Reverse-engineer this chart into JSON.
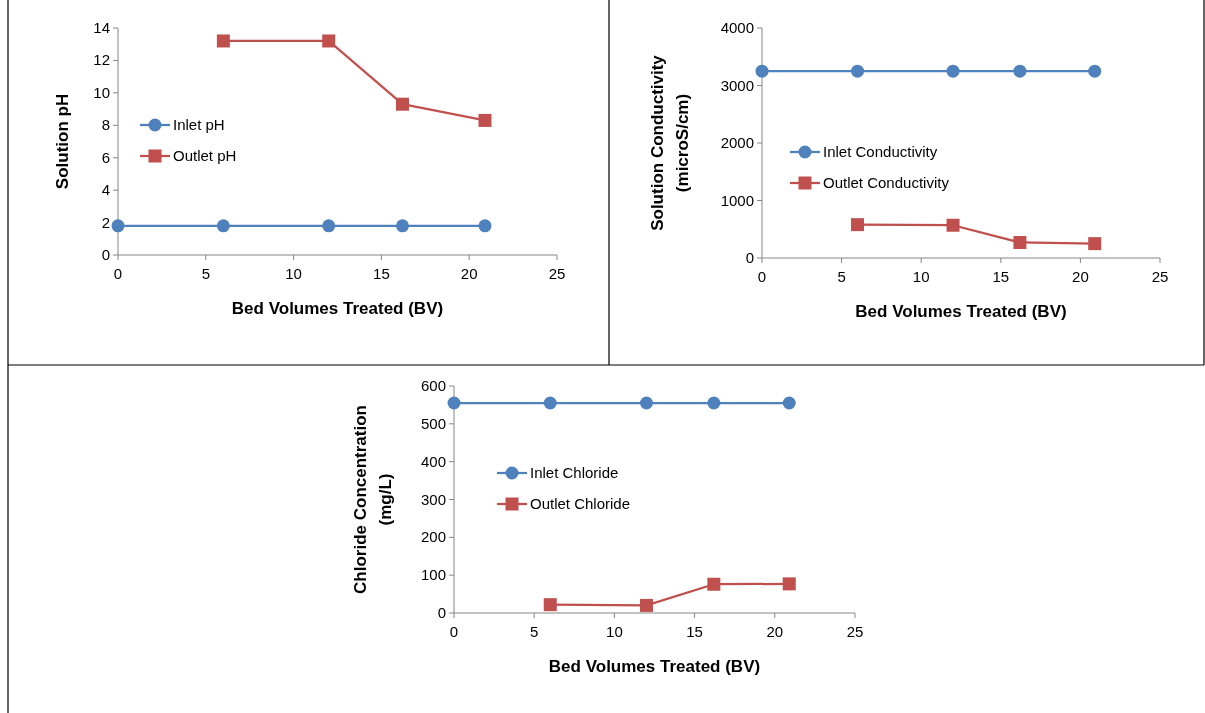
{
  "chart_data": [
    {
      "type": "line",
      "xlabel": "Bed Volumes Treated (BV)",
      "ylabel": "Solution pH",
      "xlim": [
        0,
        25
      ],
      "xticks": [
        0,
        5,
        10,
        15,
        20,
        25
      ],
      "ylim": [
        0,
        14
      ],
      "yticks": [
        0,
        2,
        4,
        6,
        8,
        10,
        12,
        14
      ],
      "legend": "left",
      "grid": false,
      "series": [
        {
          "name": "Inlet pH",
          "color": "#4f81bd",
          "marker": "circle",
          "x": [
            0,
            6,
            12,
            16.2,
            20.9
          ],
          "values": [
            1.8,
            1.8,
            1.8,
            1.8,
            1.8
          ]
        },
        {
          "name": "Outlet pH",
          "color": "#c0504d",
          "marker": "square",
          "x": [
            6,
            12,
            16.2,
            20.9
          ],
          "values": [
            13.2,
            13.2,
            9.3,
            8.3
          ]
        }
      ]
    },
    {
      "type": "line",
      "xlabel": "Bed Volumes Treated (BV)",
      "ylabel": "Solution Conductivity (microS/cm)",
      "xlim": [
        0,
        25
      ],
      "xticks": [
        0,
        5,
        10,
        15,
        20,
        25
      ],
      "ylim": [
        0,
        4000
      ],
      "yticks": [
        0,
        1000,
        2000,
        3000,
        4000
      ],
      "legend": "left",
      "grid": false,
      "series": [
        {
          "name": "Inlet Conductivity",
          "color": "#4f81bd",
          "marker": "circle",
          "x": [
            0,
            6,
            12,
            16.2,
            20.9
          ],
          "values": [
            3250,
            3250,
            3250,
            3250,
            3250
          ]
        },
        {
          "name": "Outlet Conductivity",
          "color": "#c0504d",
          "marker": "square",
          "x": [
            6,
            12,
            16.2,
            20.9
          ],
          "values": [
            580,
            570,
            270,
            250
          ]
        }
      ]
    },
    {
      "type": "line",
      "xlabel": "Bed Volumes Treated (BV)",
      "ylabel": "Chloride Concentration (mg/L)",
      "xlim": [
        0,
        25
      ],
      "xticks": [
        0,
        5,
        10,
        15,
        20,
        25
      ],
      "ylim": [
        0,
        600
      ],
      "yticks": [
        0,
        100,
        200,
        300,
        400,
        500,
        600
      ],
      "legend": "left",
      "grid": false,
      "series": [
        {
          "name": "Inlet Chloride",
          "color": "#4f81bd",
          "marker": "circle",
          "x": [
            0,
            6,
            12,
            16.2,
            20.9
          ],
          "values": [
            555,
            555,
            555,
            555,
            555
          ]
        },
        {
          "name": "Outlet Chloride",
          "color": "#c0504d",
          "marker": "square",
          "x": [
            6,
            12,
            16.2,
            20.9
          ],
          "values": [
            22,
            20,
            76,
            77
          ]
        }
      ]
    }
  ]
}
